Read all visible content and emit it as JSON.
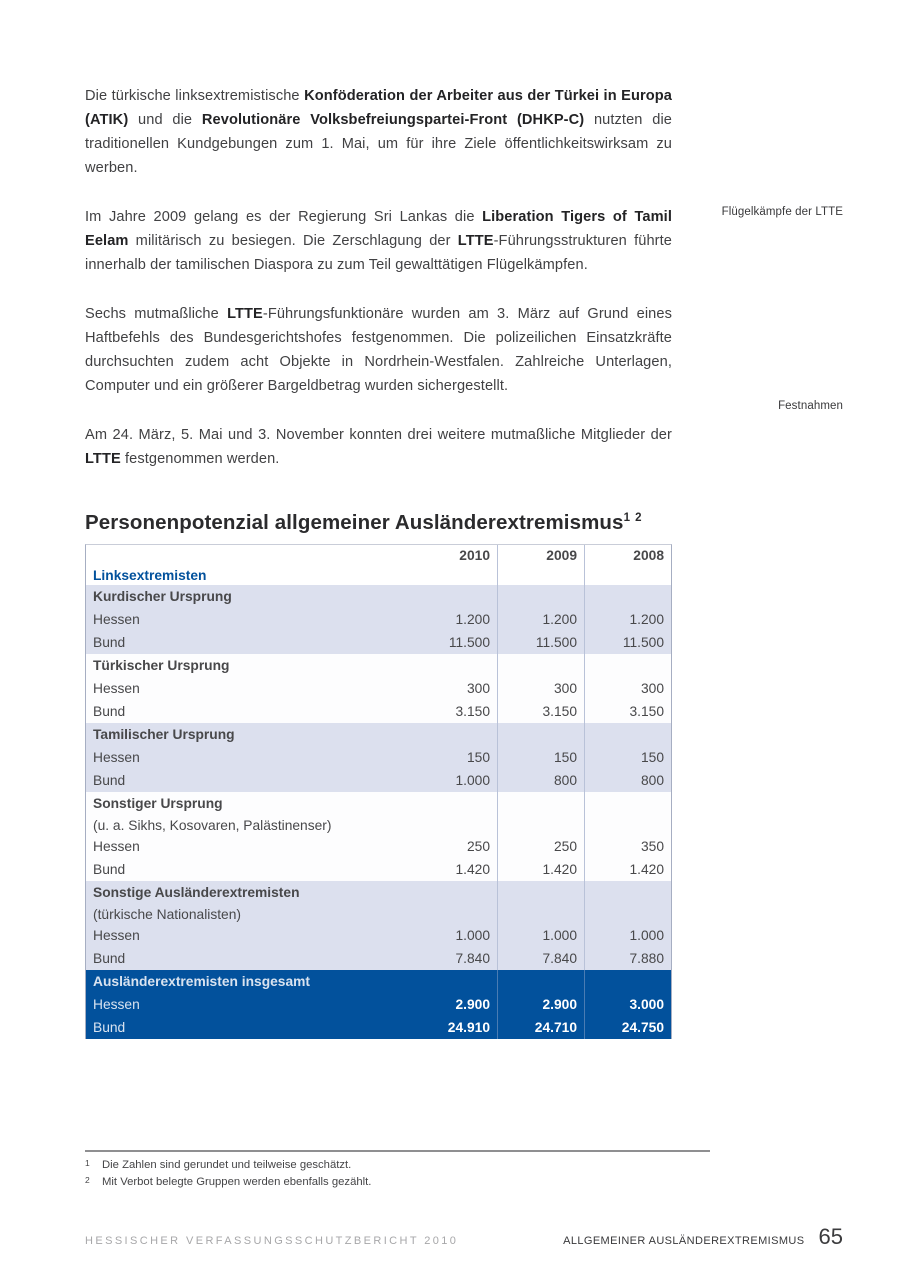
{
  "colors": {
    "accent_blue": "#02519c",
    "lavender_row": "#dce0ee",
    "body_text": "#414143"
  },
  "paragraphs": [
    {
      "segments": [
        {
          "text": "Die türkische linksextremistische ",
          "bold": false
        },
        {
          "text": "Konföderation der Arbeiter aus der Türkei in Europa (ATIK)",
          "bold": true
        },
        {
          "text": " und die ",
          "bold": false
        },
        {
          "text": "Revolutionäre Volksbefreiungspartei-Front (DHKP-C)",
          "bold": true
        },
        {
          "text": " nutzten die traditionellen Kundgebungen zum 1. Mai, um für ihre Ziele öffentlichkeitswirksam zu werben.",
          "bold": false
        }
      ]
    },
    {
      "segments": [
        {
          "text": "Im Jahre 2009 gelang es der Regierung Sri Lankas die ",
          "bold": false
        },
        {
          "text": "Liberation Tigers of Tamil Eelam",
          "bold": true
        },
        {
          "text": " militärisch zu besiegen. Die Zerschlagung der ",
          "bold": false
        },
        {
          "text": "LTTE",
          "bold": true
        },
        {
          "text": "-Führungsstrukturen führte innerhalb der tamilischen Diaspora zu zum Teil gewalttätigen Flügelkämpfen.",
          "bold": false
        }
      ]
    },
    {
      "segments": [
        {
          "text": "Sechs mutmaßliche ",
          "bold": false
        },
        {
          "text": "LTTE",
          "bold": true
        },
        {
          "text": "-Führungsfunktionäre wurden am 3. März auf Grund eines Haftbefehls des Bundesgerichtshofes festgenommen. Die polizeilichen Einsatzkräfte durchsuchten zudem acht Objekte in Nordrhein-Westfalen. Zahlreiche Unterlagen, Computer und ein größerer Bargeldbetrag wurden sichergestellt.",
          "bold": false
        }
      ]
    },
    {
      "segments": [
        {
          "text": "Am 24. März, 5. Mai und 3. November konnten drei weitere mutmaßliche Mitglieder der ",
          "bold": false
        },
        {
          "text": "LTTE",
          "bold": true
        },
        {
          "text": " festgenommen werden.",
          "bold": false
        }
      ]
    }
  ],
  "margin_notes": [
    "Flügelkämpfe der LTTE",
    "Festnahmen"
  ],
  "table": {
    "heading": "Personenpotenzial allgemeiner Ausländerextremismus",
    "heading_sup": "1 2",
    "years": [
      "2010",
      "2009",
      "2008"
    ],
    "group_label": "Linksextremisten",
    "sections": [
      {
        "theme": "lavender",
        "title": "Kurdischer Ursprung",
        "title_style": "dark",
        "subtitle": null,
        "rows": [
          {
            "label": "Hessen",
            "values": [
              "1.200",
              "1.200",
              "1.200"
            ]
          },
          {
            "label": "Bund",
            "values": [
              "11.500",
              "11.500",
              "11.500"
            ]
          }
        ]
      },
      {
        "theme": "white",
        "title": "Türkischer Ursprung",
        "title_style": "dark",
        "subtitle": null,
        "rows": [
          {
            "label": "Hessen",
            "values": [
              "300",
              "300",
              "300"
            ]
          },
          {
            "label": "Bund",
            "values": [
              "3.150",
              "3.150",
              "3.150"
            ]
          }
        ]
      },
      {
        "theme": "lavender",
        "title": "Tamilischer Ursprung",
        "title_style": "dark",
        "subtitle": null,
        "rows": [
          {
            "label": "Hessen",
            "values": [
              "150",
              "150",
              "150"
            ]
          },
          {
            "label": "Bund",
            "values": [
              "1.000",
              "800",
              "800"
            ]
          }
        ]
      },
      {
        "theme": "white",
        "title": "Sonstiger Ursprung",
        "title_style": "dark",
        "subtitle": "(u. a. Sikhs, Kosovaren, Palästinenser)",
        "rows": [
          {
            "label": "Hessen",
            "values": [
              "250",
              "250",
              "350"
            ]
          },
          {
            "label": "Bund",
            "values": [
              "1.420",
              "1.420",
              "1.420"
            ]
          }
        ]
      },
      {
        "theme": "lavender",
        "title": "Sonstige Ausländerextremisten",
        "title_style": "blue",
        "subtitle": "(türkische Nationalisten)",
        "rows": [
          {
            "label": "Hessen",
            "values": [
              "1.000",
              "1.000",
              "1.000"
            ]
          },
          {
            "label": "Bund",
            "values": [
              "7.840",
              "7.840",
              "7.880"
            ]
          }
        ]
      },
      {
        "theme": "blue",
        "title": "Ausländerextremisten insgesamt",
        "title_style": "white",
        "subtitle": null,
        "rows": [
          {
            "label": "Hessen",
            "values": [
              "2.900",
              "2.900",
              "3.000"
            ]
          },
          {
            "label": "Bund",
            "values": [
              "24.910",
              "24.710",
              "24.750"
            ]
          }
        ]
      }
    ]
  },
  "footnotes": [
    {
      "marker": "1",
      "text": "Die Zahlen sind gerundet und teilweise geschätzt."
    },
    {
      "marker": "2",
      "text": "Mit Verbot belegte Gruppen werden ebenfalls gezählt."
    }
  ],
  "footer": {
    "left": "HESSISCHER VERFASSUNGSSCHUTZBERICHT 2010",
    "right_label": "ALLGEMEINER AUSLÄNDEREXTREMISMUS",
    "page_number": "65"
  }
}
